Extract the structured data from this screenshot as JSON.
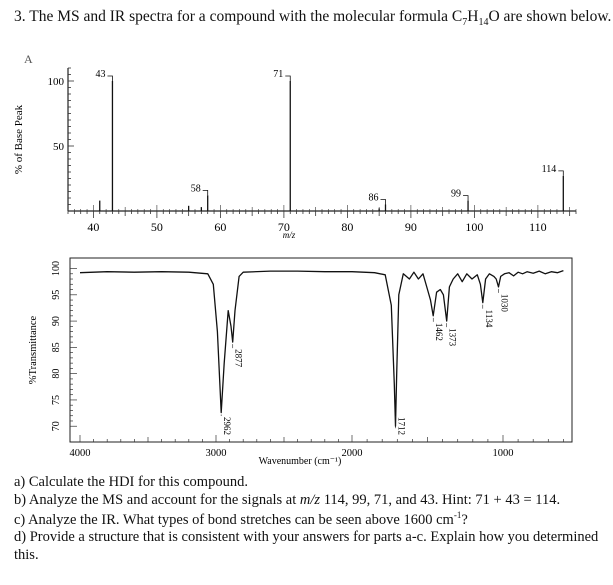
{
  "question": {
    "title_pre": "3. The MS and IR spectra for a compound with the molecular formula C",
    "sub_c": "7",
    "title_mid": "H",
    "sub_h": "14",
    "title_post": "O are shown below.",
    "panel_label": "A"
  },
  "parts": {
    "a": "a) Calculate the HDI for this compound.",
    "b_pre": "b) Analyze the MS and account for the signals at ",
    "b_mz": "m/z",
    "b_post": " 114, 99, 71, and 43. Hint: 71 + 43 = 114.",
    "c_pre": "c) Analyze the IR. What types of bond stretches can be seen above 1600 cm",
    "c_sup": "-1",
    "c_post": "?",
    "d_line1": "d) Provide a structure that is consistent with your answers for parts a-c. Explain how you determined",
    "d_line2": "this."
  },
  "chart_data": [
    {
      "type": "bar",
      "ylabel": "% of Base Peak",
      "xlabel": "m/z",
      "xlim": [
        36,
        116
      ],
      "ylim": [
        0,
        110
      ],
      "x_ticks": [
        40,
        50,
        60,
        70,
        80,
        90,
        100,
        110
      ],
      "y_ticks": [
        50,
        100
      ],
      "peaks": [
        {
          "x": 41,
          "y": 8
        },
        {
          "x": 43,
          "y": 100,
          "label": "43"
        },
        {
          "x": 55,
          "y": 4
        },
        {
          "x": 57,
          "y": 3
        },
        {
          "x": 58,
          "y": 12,
          "label": "58"
        },
        {
          "x": 71,
          "y": 100,
          "label": "71"
        },
        {
          "x": 85,
          "y": 2
        },
        {
          "x": 86,
          "y": 5,
          "label": "86"
        },
        {
          "x": 99,
          "y": 8,
          "label": "99"
        },
        {
          "x": 114,
          "y": 27,
          "label": "114"
        }
      ],
      "grid": false
    },
    {
      "type": "line",
      "ylabel": "%Transmittance",
      "xlabel": "Wavenumber (cm⁻¹)",
      "x_ticks": [
        4000,
        3000,
        2000,
        1000
      ],
      "xlim": [
        4000,
        600
      ],
      "y_ticks": [
        70,
        75,
        80,
        85,
        90,
        95,
        100
      ],
      "ylim": [
        67,
        102
      ],
      "x_reversed": true,
      "peak_labels": [
        {
          "x": 2962,
          "y": 72.6,
          "label": "2962"
        },
        {
          "x": 2877,
          "y": 86.0,
          "label": "2877"
        },
        {
          "x": 1712,
          "y": 70.0,
          "label": "1712"
        },
        {
          "x": 1462,
          "y": 91.0,
          "label": "1462"
        },
        {
          "x": 1373,
          "y": 90.0,
          "label": "1373"
        },
        {
          "x": 1134,
          "y": 93.5,
          "label": "1134"
        },
        {
          "x": 1030,
          "y": 96.5,
          "label": "1030"
        }
      ],
      "spectrum": [
        [
          4000,
          99.2
        ],
        [
          3800,
          99.4
        ],
        [
          3600,
          99.3
        ],
        [
          3400,
          99.4
        ],
        [
          3200,
          99.3
        ],
        [
          3060,
          99.0
        ],
        [
          3020,
          97.0
        ],
        [
          2990,
          88.0
        ],
        [
          2962,
          72.6
        ],
        [
          2940,
          82.0
        ],
        [
          2910,
          92.0
        ],
        [
          2890,
          89.0
        ],
        [
          2877,
          86.0
        ],
        [
          2860,
          92.0
        ],
        [
          2830,
          98.5
        ],
        [
          2800,
          99.3
        ],
        [
          2600,
          99.5
        ],
        [
          2400,
          99.5
        ],
        [
          2200,
          99.4
        ],
        [
          2000,
          99.4
        ],
        [
          1850,
          99.2
        ],
        [
          1780,
          98.8
        ],
        [
          1740,
          93.0
        ],
        [
          1720,
          78.0
        ],
        [
          1712,
          70.0
        ],
        [
          1704,
          80.0
        ],
        [
          1690,
          95.0
        ],
        [
          1660,
          99.0
        ],
        [
          1620,
          98.0
        ],
        [
          1590,
          99.3
        ],
        [
          1560,
          98.0
        ],
        [
          1530,
          99.0
        ],
        [
          1500,
          96.0
        ],
        [
          1480,
          94.0
        ],
        [
          1462,
          91.0
        ],
        [
          1440,
          95.5
        ],
        [
          1415,
          96.0
        ],
        [
          1395,
          95.0
        ],
        [
          1373,
          90.0
        ],
        [
          1355,
          96.5
        ],
        [
          1330,
          98.0
        ],
        [
          1300,
          99.0
        ],
        [
          1270,
          97.5
        ],
        [
          1240,
          99.0
        ],
        [
          1205,
          98.0
        ],
        [
          1170,
          98.8
        ],
        [
          1150,
          97.0
        ],
        [
          1134,
          93.5
        ],
        [
          1115,
          98.0
        ],
        [
          1090,
          99.0
        ],
        [
          1060,
          98.5
        ],
        [
          1045,
          98.0
        ],
        [
          1030,
          96.5
        ],
        [
          1015,
          98.5
        ],
        [
          990,
          99.0
        ],
        [
          960,
          99.2
        ],
        [
          930,
          98.6
        ],
        [
          900,
          99.3
        ],
        [
          870,
          99.0
        ],
        [
          840,
          99.4
        ],
        [
          800,
          99.1
        ],
        [
          760,
          99.5
        ],
        [
          720,
          99.0
        ],
        [
          680,
          99.4
        ],
        [
          640,
          99.2
        ],
        [
          600,
          99.6
        ]
      ],
      "grid": false
    }
  ]
}
